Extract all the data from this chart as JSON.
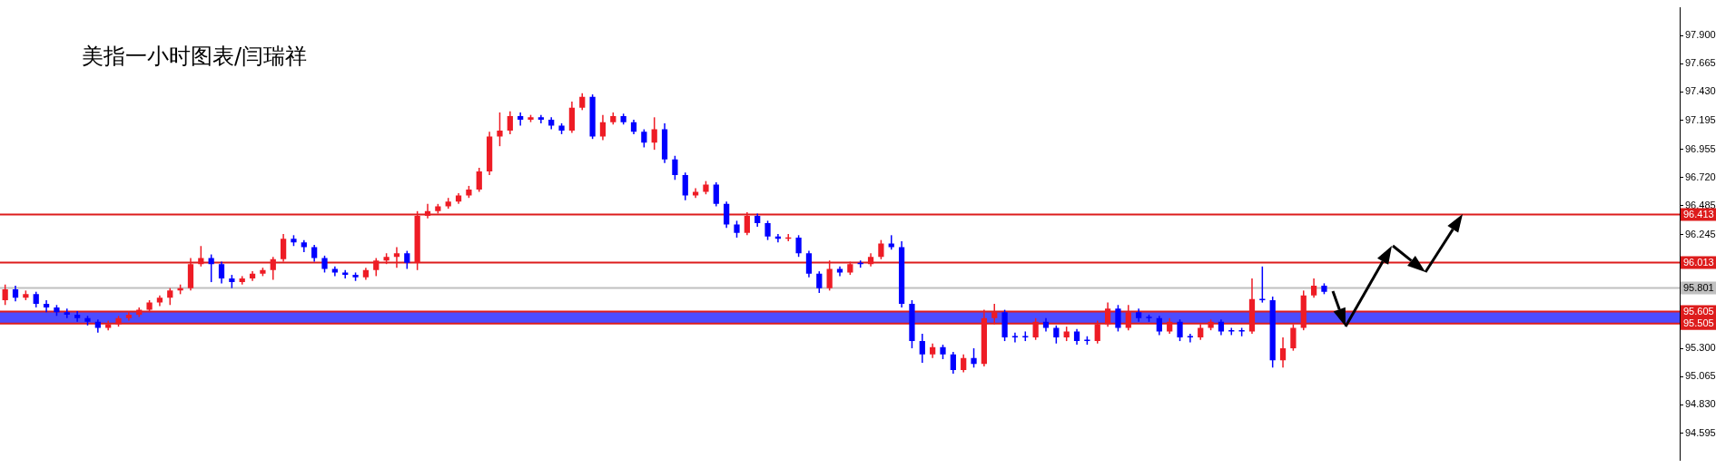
{
  "chart_data": {
    "type": "candlestick",
    "title": "美指一小时图表/闫瑞祥",
    "categories": [
      null,
      null,
      null,
      null,
      null,
      null,
      null,
      null,
      null,
      null,
      null,
      null,
      null,
      null,
      null,
      null,
      null,
      null,
      null,
      null,
      null,
      null,
      null,
      null,
      null,
      null,
      null,
      null,
      null,
      null,
      null,
      null,
      null,
      null,
      null,
      null,
      null,
      null,
      null,
      null,
      null,
      null,
      null,
      null,
      null,
      null,
      null,
      null,
      null,
      null,
      null,
      null,
      null,
      null,
      null,
      null,
      null,
      null,
      null,
      null,
      null,
      null,
      null,
      null,
      null,
      null,
      null,
      null,
      null,
      null,
      null,
      null,
      null,
      null,
      null,
      null,
      null,
      null,
      null,
      null,
      null,
      null,
      null,
      null,
      null,
      null,
      null,
      null,
      null,
      null,
      null,
      null,
      null,
      null,
      null,
      null,
      null,
      null,
      null,
      null,
      null,
      null,
      null,
      null,
      null,
      null,
      null,
      null,
      null,
      null,
      null,
      null,
      null,
      null,
      null,
      null,
      null,
      null,
      null,
      null,
      null,
      null,
      null,
      null,
      null,
      null,
      null,
      null,
      null,
      null,
      null,
      null,
      null,
      null,
      null,
      null,
      null,
      null,
      null,
      null,
      null,
      null,
      null,
      null,
      null,
      null,
      null,
      null,
      null,
      null,
      null,
      null,
      null,
      null,
      null,
      null,
      null,
      null,
      null,
      null,
      null,
      null,
      null
    ],
    "ohlc": [
      [
        95.7,
        95.83,
        95.66,
        95.79
      ],
      [
        95.79,
        95.82,
        95.69,
        95.72
      ],
      [
        95.72,
        95.78,
        95.7,
        95.75
      ],
      [
        95.75,
        95.77,
        95.64,
        95.67
      ],
      [
        95.67,
        95.7,
        95.6,
        95.64
      ],
      [
        95.64,
        95.66,
        95.57,
        95.6
      ],
      [
        95.6,
        95.63,
        95.55,
        95.58
      ],
      [
        95.58,
        95.61,
        95.52,
        95.55
      ],
      [
        95.55,
        95.57,
        95.49,
        95.52
      ],
      [
        95.52,
        95.54,
        95.43,
        95.47
      ],
      [
        95.47,
        95.53,
        95.45,
        95.5
      ],
      [
        95.5,
        95.57,
        95.48,
        95.55
      ],
      [
        95.55,
        95.61,
        95.53,
        95.58
      ],
      [
        95.58,
        95.64,
        95.56,
        95.62
      ],
      [
        95.62,
        95.7,
        95.6,
        95.68
      ],
      [
        95.68,
        95.74,
        95.65,
        95.72
      ],
      [
        95.72,
        95.8,
        95.66,
        95.78
      ],
      [
        95.78,
        95.83,
        95.75,
        95.8
      ],
      [
        95.8,
        96.05,
        95.78,
        96.0
      ],
      [
        96.0,
        96.15,
        95.98,
        96.05
      ],
      [
        96.05,
        96.08,
        95.85,
        96.0
      ],
      [
        96.0,
        96.02,
        95.84,
        95.88
      ],
      [
        95.88,
        95.91,
        95.8,
        95.85
      ],
      [
        95.85,
        95.9,
        95.83,
        95.88
      ],
      [
        95.88,
        95.94,
        95.86,
        95.92
      ],
      [
        95.92,
        95.97,
        95.9,
        95.95
      ],
      [
        95.95,
        96.06,
        95.87,
        96.04
      ],
      [
        96.04,
        96.25,
        96.02,
        96.21
      ],
      [
        96.21,
        96.24,
        96.15,
        96.18
      ],
      [
        96.18,
        96.2,
        96.1,
        96.14
      ],
      [
        96.14,
        96.16,
        96.02,
        96.05
      ],
      [
        96.05,
        96.07,
        95.93,
        95.96
      ],
      [
        95.96,
        95.98,
        95.9,
        95.93
      ],
      [
        95.93,
        95.95,
        95.88,
        95.91
      ],
      [
        95.91,
        95.93,
        95.86,
        95.89
      ],
      [
        95.89,
        95.97,
        95.87,
        95.95
      ],
      [
        95.95,
        96.05,
        95.9,
        96.03
      ],
      [
        96.03,
        96.09,
        96.0,
        96.06
      ],
      [
        96.06,
        96.14,
        95.97,
        96.09
      ],
      [
        96.09,
        96.11,
        95.96,
        96.01
      ],
      [
        96.01,
        96.44,
        95.95,
        96.4
      ],
      [
        96.4,
        96.5,
        96.38,
        96.44
      ],
      [
        96.44,
        96.5,
        96.42,
        96.48
      ],
      [
        96.48,
        96.55,
        96.46,
        96.52
      ],
      [
        96.52,
        96.59,
        96.5,
        96.57
      ],
      [
        96.57,
        96.65,
        96.55,
        96.62
      ],
      [
        96.62,
        96.8,
        96.6,
        96.77
      ],
      [
        96.77,
        97.1,
        96.74,
        97.06
      ],
      [
        97.06,
        97.26,
        96.98,
        97.11
      ],
      [
        97.11,
        97.27,
        97.08,
        97.23
      ],
      [
        97.23,
        97.26,
        97.15,
        97.2
      ],
      [
        97.2,
        97.24,
        97.18,
        97.22
      ],
      [
        97.22,
        97.24,
        97.17,
        97.2
      ],
      [
        97.2,
        97.22,
        97.12,
        97.15
      ],
      [
        97.15,
        97.17,
        97.08,
        97.11
      ],
      [
        97.11,
        97.35,
        97.09,
        97.3
      ],
      [
        97.3,
        97.42,
        97.28,
        97.39
      ],
      [
        97.39,
        97.41,
        97.04,
        97.06
      ],
      [
        97.06,
        97.24,
        97.03,
        97.18
      ],
      [
        97.18,
        97.26,
        97.16,
        97.23
      ],
      [
        97.23,
        97.25,
        97.16,
        97.18
      ],
      [
        97.18,
        97.2,
        97.08,
        97.1
      ],
      [
        97.1,
        97.12,
        96.97,
        97.01
      ],
      [
        97.01,
        97.22,
        96.95,
        97.12
      ],
      [
        97.12,
        97.17,
        96.84,
        96.87
      ],
      [
        96.87,
        96.9,
        96.7,
        96.74
      ],
      [
        96.74,
        96.76,
        96.53,
        96.57
      ],
      [
        96.57,
        96.63,
        96.55,
        96.6
      ],
      [
        96.6,
        96.69,
        96.58,
        96.66
      ],
      [
        96.66,
        96.68,
        96.48,
        96.5
      ],
      [
        96.5,
        96.52,
        96.3,
        96.33
      ],
      [
        96.33,
        96.36,
        96.22,
        96.26
      ],
      [
        96.26,
        96.43,
        96.24,
        96.4
      ],
      [
        96.4,
        96.42,
        96.31,
        96.34
      ],
      [
        96.34,
        96.36,
        96.2,
        96.23
      ],
      [
        96.23,
        96.25,
        96.18,
        96.21
      ],
      [
        96.21,
        96.25,
        96.19,
        96.22
      ],
      [
        96.22,
        96.24,
        96.06,
        96.09
      ],
      [
        96.09,
        96.11,
        95.89,
        95.92
      ],
      [
        95.92,
        95.94,
        95.76,
        95.8
      ],
      [
        95.8,
        96.03,
        95.78,
        95.96
      ],
      [
        95.96,
        95.98,
        95.9,
        95.93
      ],
      [
        95.93,
        96.02,
        95.91,
        96.0
      ],
      [
        96.0,
        96.03,
        95.97,
        96.0
      ],
      [
        96.0,
        96.09,
        95.98,
        96.06
      ],
      [
        96.06,
        96.2,
        96.04,
        96.17
      ],
      [
        96.17,
        96.24,
        96.12,
        96.14
      ],
      [
        96.14,
        96.19,
        95.64,
        95.67
      ],
      [
        95.67,
        95.7,
        95.3,
        95.36
      ],
      [
        95.36,
        95.42,
        95.18,
        95.25
      ],
      [
        95.25,
        95.34,
        95.22,
        95.31
      ],
      [
        95.31,
        95.33,
        95.21,
        95.25
      ],
      [
        95.25,
        95.27,
        95.09,
        95.12
      ],
      [
        95.12,
        95.25,
        95.1,
        95.22
      ],
      [
        95.22,
        95.3,
        95.14,
        95.17
      ],
      [
        95.17,
        95.62,
        95.15,
        95.55
      ],
      [
        95.55,
        95.67,
        95.5,
        95.6
      ],
      [
        95.6,
        95.62,
        95.36,
        95.39
      ],
      [
        95.39,
        95.43,
        95.35,
        95.39
      ],
      [
        95.39,
        95.44,
        95.36,
        95.39
      ],
      [
        95.39,
        95.55,
        95.37,
        95.52
      ],
      [
        95.52,
        95.55,
        95.44,
        95.47
      ],
      [
        95.47,
        95.49,
        95.34,
        95.39
      ],
      [
        95.39,
        95.48,
        95.36,
        95.44
      ],
      [
        95.44,
        95.46,
        95.33,
        95.36
      ],
      [
        95.36,
        95.4,
        95.33,
        95.36
      ],
      [
        95.36,
        95.53,
        95.34,
        95.5
      ],
      [
        95.5,
        95.68,
        95.48,
        95.63
      ],
      [
        95.63,
        95.66,
        95.44,
        95.47
      ],
      [
        95.47,
        95.66,
        95.45,
        95.6
      ],
      [
        95.6,
        95.63,
        95.52,
        95.55
      ],
      [
        95.55,
        95.58,
        95.52,
        95.55
      ],
      [
        95.55,
        95.57,
        95.41,
        95.44
      ],
      [
        95.44,
        95.55,
        95.42,
        95.52
      ],
      [
        95.52,
        95.54,
        95.36,
        95.39
      ],
      [
        95.39,
        95.42,
        95.35,
        95.39
      ],
      [
        95.39,
        95.5,
        95.37,
        95.47
      ],
      [
        95.47,
        95.54,
        95.45,
        95.52
      ],
      [
        95.52,
        95.54,
        95.41,
        95.44
      ],
      [
        95.44,
        95.47,
        95.41,
        95.44
      ],
      [
        95.44,
        95.47,
        95.4,
        95.44
      ],
      [
        95.44,
        95.88,
        95.42,
        95.71
      ],
      [
        95.71,
        95.98,
        95.68,
        95.7
      ],
      [
        95.7,
        95.73,
        95.14,
        95.2
      ],
      [
        95.2,
        95.39,
        95.14,
        95.3
      ],
      [
        95.3,
        95.5,
        95.28,
        95.47
      ],
      [
        95.47,
        95.78,
        95.45,
        95.74
      ],
      [
        95.74,
        95.88,
        95.72,
        95.82
      ],
      [
        95.82,
        95.84,
        95.75,
        95.77
      ],
      null,
      null,
      null,
      null,
      null,
      null,
      null,
      null,
      null,
      null,
      null,
      null,
      null,
      null,
      null,
      null,
      null,
      null,
      null,
      null,
      null,
      null,
      null,
      null,
      null,
      null,
      null,
      null,
      null,
      null,
      null,
      null,
      null,
      null
    ],
    "colors": [
      "#ee1c25",
      "#0000ff",
      "#ee1c25",
      "#0000ff",
      "#0000ff",
      "#0000ff",
      "#0000ff",
      "#0000ff",
      "#0000ff",
      "#0000ff",
      "#ee1c25",
      "#ee1c25",
      "#ee1c25",
      "#ee1c25",
      "#ee1c25",
      "#ee1c25",
      "#ee1c25",
      "#ee1c25",
      "#ee1c25",
      "#ee1c25",
      "#0000ff",
      "#0000ff",
      "#0000ff",
      "#ee1c25",
      "#ee1c25",
      "#ee1c25",
      "#ee1c25",
      "#ee1c25",
      "#0000ff",
      "#0000ff",
      "#0000ff",
      "#0000ff",
      "#0000ff",
      "#0000ff",
      "#0000ff",
      "#ee1c25",
      "#ee1c25",
      "#ee1c25",
      "#ee1c25",
      "#0000ff",
      "#ee1c25",
      "#ee1c25",
      "#ee1c25",
      "#ee1c25",
      "#ee1c25",
      "#ee1c25",
      "#ee1c25",
      "#ee1c25",
      "#ee1c25",
      "#ee1c25",
      "#0000ff",
      "#ee1c25",
      "#0000ff",
      "#0000ff",
      "#0000ff",
      "#ee1c25",
      "#ee1c25",
      "#0000ff",
      "#ee1c25",
      "#ee1c25",
      "#0000ff",
      "#0000ff",
      "#0000ff",
      "#ee1c25",
      "#0000ff",
      "#0000ff",
      "#0000ff",
      "#ee1c25",
      "#ee1c25",
      "#0000ff",
      "#0000ff",
      "#0000ff",
      "#ee1c25",
      "#0000ff",
      "#0000ff",
      "#0000ff",
      "#ee1c25",
      "#0000ff",
      "#0000ff",
      "#0000ff",
      "#ee1c25",
      "#0000ff",
      "#ee1c25",
      "#0000ff",
      "#ee1c25",
      "#ee1c25",
      "#0000ff",
      "#0000ff",
      "#0000ff",
      "#0000ff",
      "#ee1c25",
      "#0000ff",
      "#0000ff",
      "#ee1c25",
      "#0000ff",
      "#ee1c25",
      "#ee1c25",
      "#0000ff",
      "#0000ff",
      "#0000ff",
      "#ee1c25",
      "#0000ff",
      "#0000ff",
      "#ee1c25",
      "#0000ff",
      "#0000ff",
      "#ee1c25",
      "#ee1c25",
      "#0000ff",
      "#ee1c25",
      "#0000ff",
      "#0000ff",
      "#0000ff",
      "#ee1c25",
      "#0000ff",
      "#0000ff",
      "#ee1c25",
      "#ee1c25",
      "#0000ff",
      "#0000ff",
      "#0000ff",
      "#ee1c25",
      "#0000ff",
      "#0000ff",
      "#ee1c25",
      "#ee1c25",
      "#ee1c25",
      "#ee1c25",
      "#0000ff",
      null,
      null,
      null,
      null,
      null,
      null,
      null,
      null,
      null,
      null,
      null,
      null,
      null,
      null,
      null,
      null,
      null,
      null,
      null,
      null,
      null,
      null,
      null,
      null,
      null,
      null,
      null,
      null,
      null,
      null,
      null,
      null,
      null,
      null
    ],
    "ylim": [
      94.37,
      98.13
    ],
    "yticks": [
      {
        "value": 97.9,
        "label": "97.900"
      },
      97.665,
      {
        "value": 97.43,
        "label": "97.430"
      },
      97.195,
      96.955,
      {
        "value": 96.72,
        "label": "96.720"
      },
      96.485,
      96.245,
      {
        "value": 95.3,
        "label": "95.300"
      },
      95.065,
      {
        "value": 94.83,
        "label": "94.830"
      },
      94.595
    ],
    "tick_labels": "y",
    "grid": false,
    "ref_lines": [
      {
        "axis": "y",
        "value": 96.413,
        "label": "96.413",
        "color": "#dd1c1c"
      },
      {
        "axis": "y",
        "value": 96.013,
        "label": "96.013",
        "color": "#dd1c1c"
      },
      {
        "axis": "y",
        "value": 95.801,
        "label": "95.801",
        "color": "#c0c0c0"
      },
      {
        "axis": "y",
        "value": 95.605,
        "label": "95.605",
        "color": "#dd1c1c"
      },
      {
        "axis": "y",
        "value": 95.505,
        "label": "95.505",
        "color": "#dd1c1c"
      }
    ],
    "bands": [
      {
        "axis": "y",
        "from": 95.505,
        "to": 95.605,
        "color": "#0000ff"
      }
    ]
  }
}
